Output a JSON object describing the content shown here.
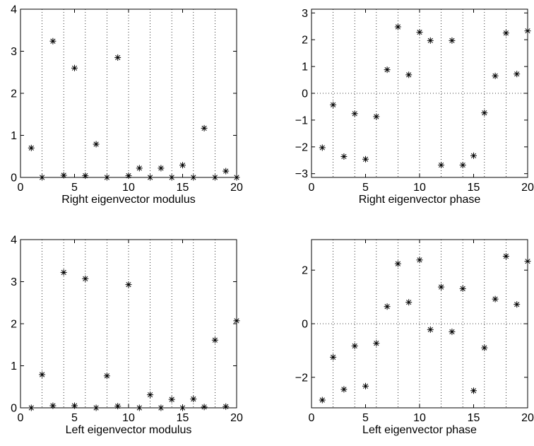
{
  "chart_data": [
    {
      "type": "scatter",
      "xlabel": "Right eigenvector modulus",
      "ylabel": "",
      "xlim": [
        0,
        20
      ],
      "ylim": [
        0,
        4
      ],
      "xticks": [
        0,
        5,
        10,
        15,
        20
      ],
      "yticks": [
        0,
        1,
        2,
        3,
        4
      ],
      "xgrid": [
        2,
        4,
        6,
        8,
        10,
        12,
        14,
        16,
        18
      ],
      "ygrid": [],
      "grid": "vertical dotted",
      "marker": "asterisk",
      "x": [
        1,
        2,
        3,
        4,
        5,
        6,
        7,
        8,
        9,
        10,
        11,
        12,
        13,
        14,
        15,
        16,
        17,
        18,
        19,
        20
      ],
      "y": [
        0.7,
        0.0,
        3.24,
        0.05,
        2.6,
        0.04,
        0.79,
        0.0,
        2.85,
        0.04,
        0.22,
        0.0,
        0.22,
        0.0,
        0.29,
        0.0,
        1.17,
        0.0,
        0.15,
        0.0
      ]
    },
    {
      "type": "scatter",
      "xlabel": "Right eigenvector phase",
      "ylabel": "",
      "xlim": [
        0,
        20
      ],
      "ylim": [
        -3.14,
        3.14
      ],
      "xticks": [
        0,
        5,
        10,
        15,
        20
      ],
      "yticks": [
        -3,
        -2,
        -1,
        0,
        1,
        2,
        3
      ],
      "xgrid": [
        2,
        4,
        6,
        8,
        10,
        12,
        14,
        16,
        18
      ],
      "ygrid": [
        0
      ],
      "grid": "vertical dotted, horizontal dotted at y=0",
      "marker": "asterisk",
      "x": [
        1,
        2,
        3,
        4,
        5,
        6,
        7,
        8,
        9,
        10,
        11,
        12,
        13,
        14,
        15,
        16,
        17,
        18,
        19,
        20
      ],
      "y": [
        -2.03,
        -0.43,
        -2.36,
        -0.76,
        -2.46,
        -0.87,
        0.88,
        2.48,
        0.69,
        2.28,
        1.97,
        -2.68,
        1.97,
        -2.68,
        -2.33,
        -0.73,
        0.65,
        2.25,
        0.72,
        2.33
      ]
    },
    {
      "type": "scatter",
      "xlabel": "Left eigenvector modulus",
      "ylabel": "",
      "xlim": [
        0,
        20
      ],
      "ylim": [
        0,
        4
      ],
      "xticks": [
        0,
        5,
        10,
        15,
        20
      ],
      "yticks": [
        0,
        1,
        2,
        3,
        4
      ],
      "xgrid": [
        2,
        4,
        6,
        8,
        10,
        12,
        14,
        16,
        18
      ],
      "ygrid": [],
      "grid": "vertical dotted",
      "marker": "asterisk",
      "x": [
        1,
        2,
        3,
        4,
        5,
        6,
        7,
        8,
        9,
        10,
        11,
        12,
        13,
        14,
        15,
        16,
        17,
        18,
        19,
        20
      ],
      "y": [
        0.0,
        0.79,
        0.05,
        3.22,
        0.05,
        3.07,
        0.0,
        0.76,
        0.04,
        2.93,
        0.0,
        0.31,
        0.0,
        0.2,
        0.0,
        0.21,
        0.02,
        1.61,
        0.03,
        2.07
      ]
    },
    {
      "type": "scatter",
      "xlabel": "Left eigenvector phase",
      "ylabel": "",
      "xlim": [
        0,
        20
      ],
      "ylim": [
        -3.14,
        3.14
      ],
      "xticks": [
        0,
        5,
        10,
        15,
        20
      ],
      "yticks": [
        -2,
        0,
        2
      ],
      "xgrid": [
        2,
        4,
        6,
        8,
        10,
        12,
        14,
        16,
        18
      ],
      "ygrid": [
        0
      ],
      "grid": "vertical dotted, horizontal dotted at y=0",
      "marker": "asterisk",
      "x": [
        1,
        2,
        3,
        4,
        5,
        6,
        7,
        8,
        9,
        10,
        11,
        12,
        13,
        14,
        15,
        16,
        17,
        18,
        19,
        20
      ],
      "y": [
        -2.85,
        -1.25,
        -2.45,
        -0.83,
        -2.33,
        -0.73,
        0.64,
        2.24,
        0.8,
        2.38,
        -0.22,
        1.37,
        -0.3,
        1.31,
        -2.5,
        -0.9,
        0.92,
        2.52,
        0.72,
        2.33
      ]
    }
  ]
}
